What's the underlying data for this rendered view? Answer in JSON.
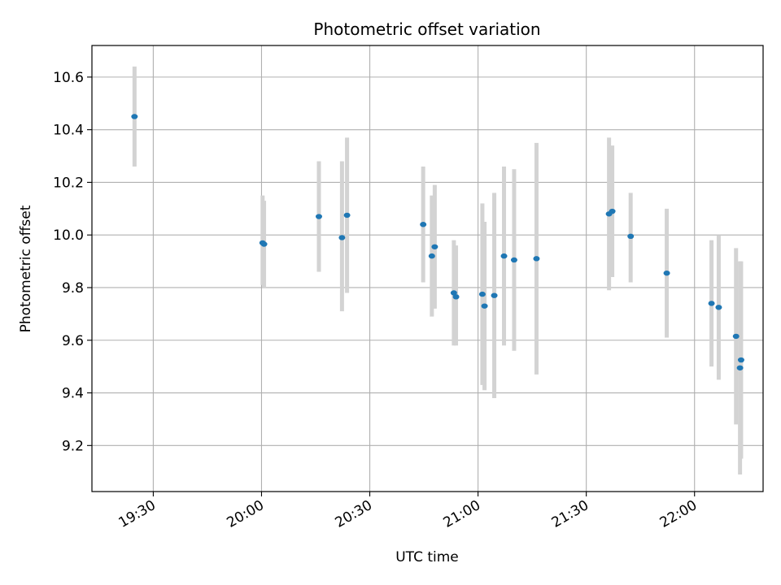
{
  "chart_data": {
    "type": "scatter",
    "title": "Photometric offset variation",
    "xlabel": "UTC time",
    "ylabel": "Photometric offset",
    "x_unit": "minutes since 00:00 UTC",
    "xlim": [
      1153,
      1339
    ],
    "ylim": [
      9.025,
      10.72
    ],
    "x_ticks": [
      1170,
      1200,
      1230,
      1260,
      1290,
      1320
    ],
    "x_tick_labels": [
      "19:30",
      "20:00",
      "20:30",
      "21:00",
      "21:30",
      "22:00"
    ],
    "y_ticks": [
      9.2,
      9.4,
      9.6,
      9.8,
      10.0,
      10.2,
      10.4,
      10.6
    ],
    "y_tick_labels": [
      "9.2",
      "9.4",
      "9.6",
      "9.8",
      "10.0",
      "10.2",
      "10.4",
      "10.6"
    ],
    "grid": true,
    "point_color": "#1f77b4",
    "errorbar_color": "#d3d3d3",
    "series": [
      {
        "points": [
          {
            "x": 1164.8,
            "y": 10.45,
            "lo": 10.26,
            "hi": 10.64
          },
          {
            "x": 1200.3,
            "y": 9.97,
            "lo": 9.81,
            "hi": 10.15
          },
          {
            "x": 1200.7,
            "y": 9.965,
            "lo": 9.8,
            "hi": 10.13
          },
          {
            "x": 1215.9,
            "y": 10.07,
            "lo": 9.86,
            "hi": 10.28
          },
          {
            "x": 1222.3,
            "y": 9.99,
            "lo": 9.71,
            "hi": 10.28
          },
          {
            "x": 1223.7,
            "y": 10.075,
            "lo": 9.78,
            "hi": 10.37
          },
          {
            "x": 1244.8,
            "y": 10.04,
            "lo": 9.82,
            "hi": 10.26
          },
          {
            "x": 1247.2,
            "y": 9.92,
            "lo": 9.69,
            "hi": 10.15
          },
          {
            "x": 1248.0,
            "y": 9.955,
            "lo": 9.72,
            "hi": 10.19
          },
          {
            "x": 1253.3,
            "y": 9.78,
            "lo": 9.58,
            "hi": 9.98
          },
          {
            "x": 1253.9,
            "y": 9.765,
            "lo": 9.58,
            "hi": 9.96
          },
          {
            "x": 1261.2,
            "y": 9.775,
            "lo": 9.43,
            "hi": 10.12
          },
          {
            "x": 1261.8,
            "y": 9.73,
            "lo": 9.41,
            "hi": 10.05
          },
          {
            "x": 1264.5,
            "y": 9.77,
            "lo": 9.38,
            "hi": 10.16
          },
          {
            "x": 1267.2,
            "y": 9.92,
            "lo": 9.58,
            "hi": 10.26
          },
          {
            "x": 1270.0,
            "y": 9.905,
            "lo": 9.56,
            "hi": 10.25
          },
          {
            "x": 1276.2,
            "y": 9.91,
            "lo": 9.47,
            "hi": 10.35
          },
          {
            "x": 1296.3,
            "y": 10.08,
            "lo": 9.79,
            "hi": 10.37
          },
          {
            "x": 1297.2,
            "y": 10.09,
            "lo": 9.84,
            "hi": 10.34
          },
          {
            "x": 1302.3,
            "y": 9.995,
            "lo": 9.82,
            "hi": 10.16
          },
          {
            "x": 1312.3,
            "y": 9.855,
            "lo": 9.61,
            "hi": 10.1
          },
          {
            "x": 1324.7,
            "y": 9.74,
            "lo": 9.5,
            "hi": 9.98
          },
          {
            "x": 1326.7,
            "y": 9.725,
            "lo": 9.45,
            "hi": 10.0
          },
          {
            "x": 1331.5,
            "y": 9.615,
            "lo": 9.28,
            "hi": 9.95
          },
          {
            "x": 1332.6,
            "y": 9.495,
            "lo": 9.09,
            "hi": 9.9
          },
          {
            "x": 1332.9,
            "y": 9.525,
            "lo": 9.15,
            "hi": 9.9
          }
        ]
      }
    ]
  }
}
